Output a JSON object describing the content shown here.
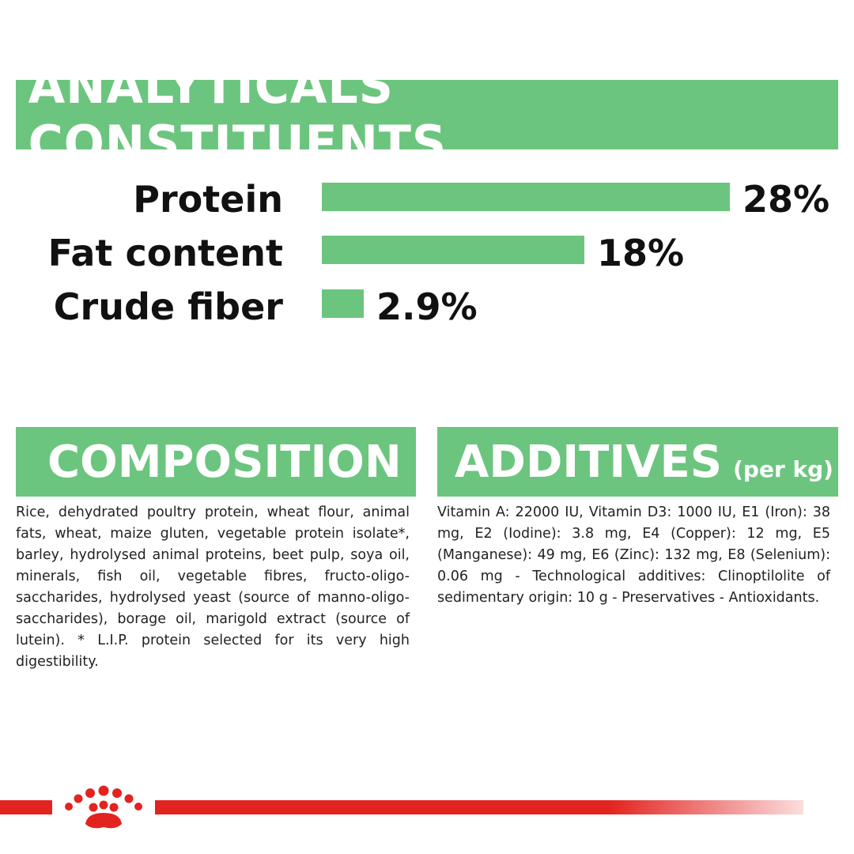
{
  "analytics": {
    "title": "ANALYTICALS CONSTITUENTS",
    "items": [
      {
        "label": "Protein",
        "value": "28%",
        "percent": 28
      },
      {
        "label": "Fat content",
        "value": "18%",
        "percent": 18
      },
      {
        "label": "Crude fiber",
        "value": "2.9%",
        "percent": 2.9
      }
    ]
  },
  "composition": {
    "title": "COMPOSITION",
    "text": "Rice, dehydrated poultry protein, wheat flour, animal fats, wheat, maize gluten, vegetable protein isolate*, barley, hydrolysed animal proteins, beet pulp, soya oil, minerals, fish oil, vegetable fibres, fructo-oligo-saccharides, hydrolysed yeast (source of manno-oligo-saccharides), borage oil, marigold extract (source of lutein). * L.I.P. protein selected for its very high digestibility."
  },
  "additives": {
    "title": "ADDITIVES",
    "subtitle": "(per kg)",
    "text": "Vitamin A: 22000 IU, Vitamin D3: 1000 IU, E1 (Iron): 38 mg, E2 (Iodine): 3.8 mg, E4 (Copper): 12 mg, E5 (Manganese): 49 mg, E6 (Zinc): 132 mg, E8 (Selenium): 0.06 mg - Technological additives: Clinoptilolite of sedimentary origin: 10 g - Preservatives - Antioxidants."
  },
  "colors": {
    "green": "#6cc57e",
    "red": "#e3231f"
  },
  "footer": {
    "logo_icon": "crown-paw-logo-icon"
  }
}
